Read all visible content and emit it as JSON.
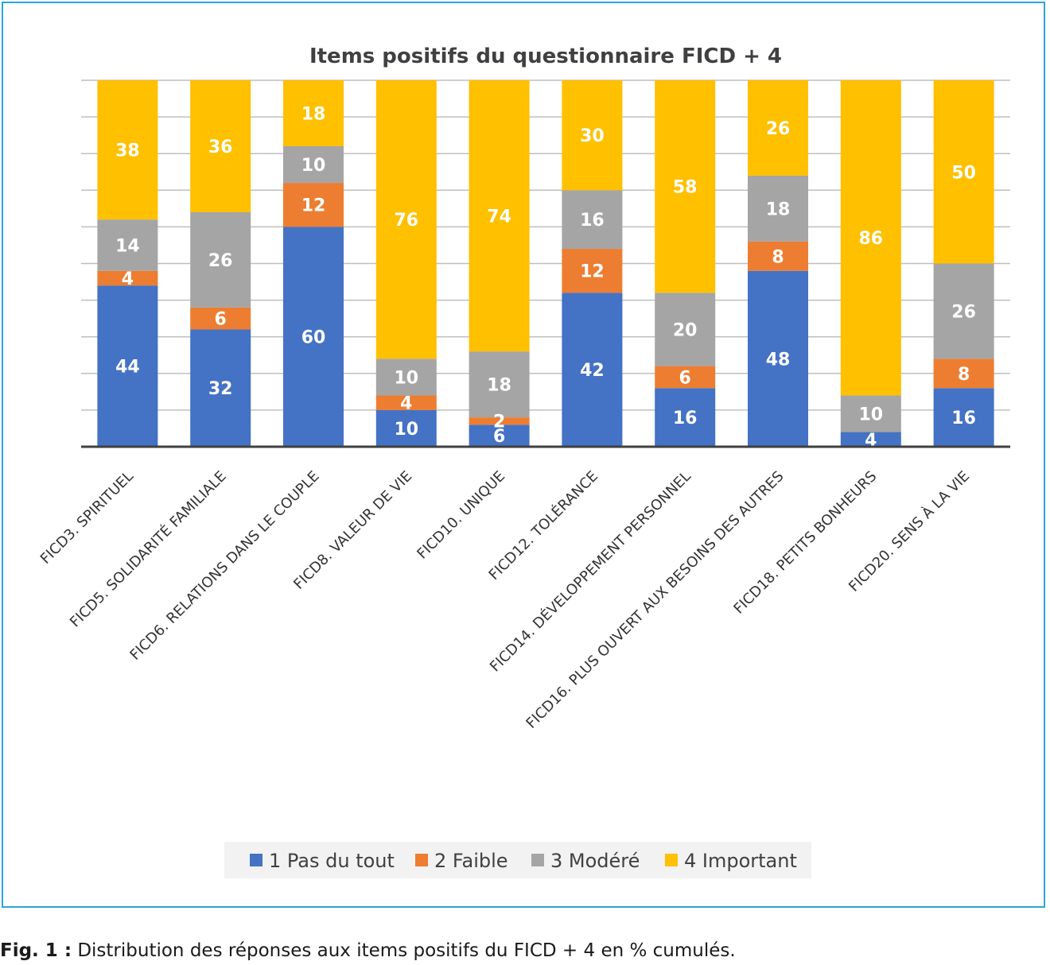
{
  "chart_data": {
    "type": "bar",
    "stacked": true,
    "title": "Items positifs du questionnaire FICD + 4",
    "categories": [
      "FICD3. SPIRITUEL",
      "FICD5. SOLIDARITÉ FAMILIALE",
      "FICD6. RELATIONS DANS LE COUPLE",
      "FICD8. VALEUR DE VIE",
      "FICD10. UNIQUE",
      "FICD12. TOLÉRANCE",
      "FICD14. DÉVELOPPEMENT PERSONNEL",
      "FICD16. PLUS OUVERT AUX BESOINS DES AUTRES",
      "FICD18. PETITS BONHEURS",
      "FICD20. SENS À LA VIE"
    ],
    "series": [
      {
        "name": "1 Pas du tout",
        "color": "#4472c4",
        "values": [
          44,
          32,
          60,
          10,
          6,
          42,
          16,
          48,
          4,
          16
        ]
      },
      {
        "name": "2 Faible",
        "color": "#ed7d31",
        "values": [
          4,
          6,
          12,
          4,
          2,
          12,
          6,
          8,
          0,
          8
        ]
      },
      {
        "name": "3 Modéré",
        "color": "#a5a5a5",
        "values": [
          14,
          26,
          10,
          10,
          18,
          16,
          20,
          18,
          10,
          26
        ]
      },
      {
        "name": "4 Important",
        "color": "#ffc000",
        "values": [
          38,
          36,
          18,
          76,
          74,
          30,
          58,
          26,
          86,
          50
        ]
      }
    ],
    "ylim": [
      0,
      100
    ],
    "grid": true,
    "legend": "bottom"
  },
  "caption": {
    "label": "Fig. 1 :",
    "text": " Distribution des réponses aux items positifs du FICD + 4 en % cumulés."
  }
}
